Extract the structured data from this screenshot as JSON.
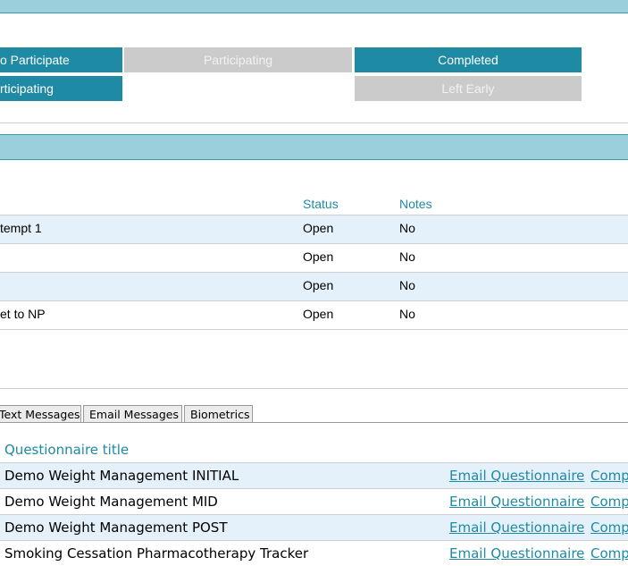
{
  "status_buttons": {
    "row1": [
      "o Participate",
      "Participating",
      "Completed"
    ],
    "row2": [
      "rticipating",
      "Left Early"
    ]
  },
  "tasks": {
    "headers": {
      "status": "Status",
      "notes": "Notes"
    },
    "rows": [
      {
        "name": "tempt 1",
        "status": "Open",
        "notes": "No"
      },
      {
        "name": "",
        "status": "Open",
        "notes": "No"
      },
      {
        "name": "",
        "status": "Open",
        "notes": "No"
      },
      {
        "name": "et to NP",
        "status": "Open",
        "notes": "No"
      }
    ]
  },
  "tabs": [
    "Text Messages",
    "Email Messages",
    "Biometrics"
  ],
  "questionnaires": {
    "header": "Questionnaire title",
    "email_link": "Email Questionnaire",
    "comp_link": "Comp",
    "rows": [
      "Demo Weight Management INITIAL",
      "Demo Weight Management MID",
      "Demo Weight Management POST",
      "Smoking Cessation Pharmacotherapy Tracker"
    ]
  },
  "colors": {
    "accent": "#1e8aa3",
    "header_bar": "#9ccfdc",
    "row_alt": "#e4f1fb",
    "inactive_button": "#cbcbcb"
  }
}
